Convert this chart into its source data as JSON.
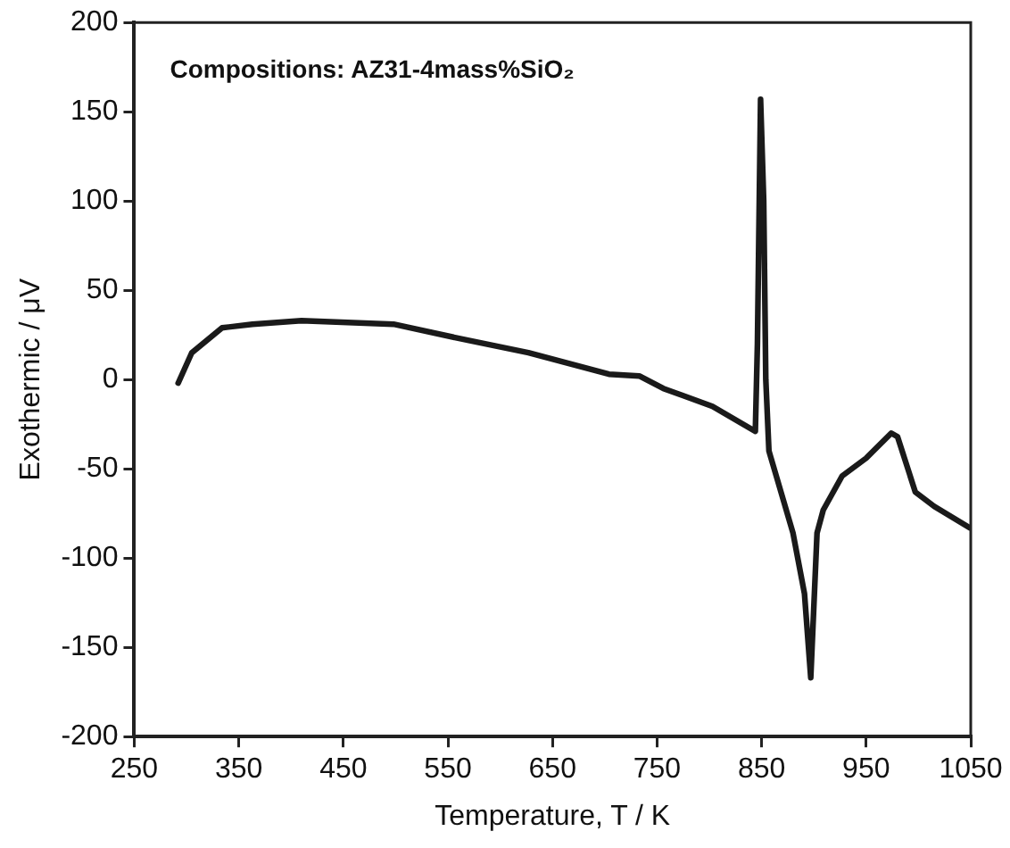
{
  "chart_data": {
    "type": "line",
    "xlabel": "Temperature, T / K",
    "ylabel": "Exothermic / μV",
    "annotations": [
      "Compositions: AZ31-4mass%SiO₂"
    ],
    "x": [
      292,
      305,
      334,
      363,
      410,
      498,
      569,
      627,
      704,
      733,
      756,
      803,
      844,
      846,
      849,
      852,
      854,
      857,
      865,
      880,
      891,
      897,
      903,
      909,
      927,
      950,
      974,
      980,
      997,
      1015,
      1049
    ],
    "series": [
      {
        "color": "#1a1a1a",
        "values": [
          -2,
          15,
          29,
          31,
          33,
          31,
          22,
          15,
          3,
          2,
          -5,
          -15,
          -29,
          20,
          157,
          100,
          0,
          -40,
          -56,
          -86,
          -120,
          -167,
          -86,
          -73,
          -54,
          -44,
          -30,
          -32,
          -63,
          -71,
          -83
        ]
      }
    ],
    "xlim": [
      250,
      1050
    ],
    "xticks": [
      250,
      350,
      450,
      550,
      650,
      750,
      850,
      950,
      1050
    ],
    "ylim": [
      -200,
      200
    ],
    "yticks": [
      -200,
      -150,
      -100,
      -50,
      0,
      50,
      100,
      150,
      200
    ],
    "grid": false,
    "legend": false,
    "marker": "none",
    "line_style": "solid"
  }
}
